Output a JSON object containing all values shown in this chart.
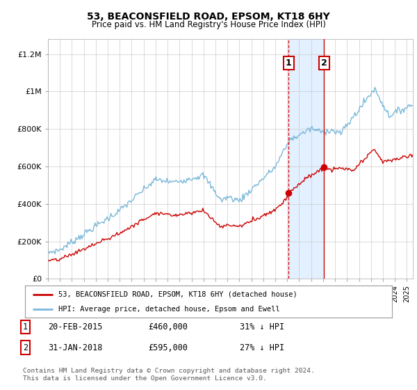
{
  "title": "53, BEACONSFIELD ROAD, EPSOM, KT18 6HY",
  "subtitle": "Price paid vs. HM Land Registry's House Price Index (HPI)",
  "ylabel_ticks": [
    "£0",
    "£200K",
    "£400K",
    "£600K",
    "£800K",
    "£1M",
    "£1.2M"
  ],
  "ytick_vals": [
    0,
    200000,
    400000,
    600000,
    800000,
    1000000,
    1200000
  ],
  "ylim": [
    0,
    1280000
  ],
  "xlim_start": 1995.0,
  "xlim_end": 2025.5,
  "transaction1_date": 2015.12,
  "transaction1_price": 460000,
  "transaction2_date": 2018.08,
  "transaction2_price": 595000,
  "hpi_color": "#7ab8d9",
  "price_color": "#cc0000",
  "shaded_color": "#ddeeff",
  "legend_label1": "53, BEACONSFIELD ROAD, EPSOM, KT18 6HY (detached house)",
  "legend_label2": "HPI: Average price, detached house, Epsom and Ewell",
  "table_row1": [
    "1",
    "20-FEB-2015",
    "£460,000",
    "31% ↓ HPI"
  ],
  "table_row2": [
    "2",
    "31-JAN-2018",
    "£595,000",
    "27% ↓ HPI"
  ],
  "footer": "Contains HM Land Registry data © Crown copyright and database right 2024.\nThis data is licensed under the Open Government Licence v3.0.",
  "background_color": "#ffffff",
  "grid_color": "#cccccc"
}
